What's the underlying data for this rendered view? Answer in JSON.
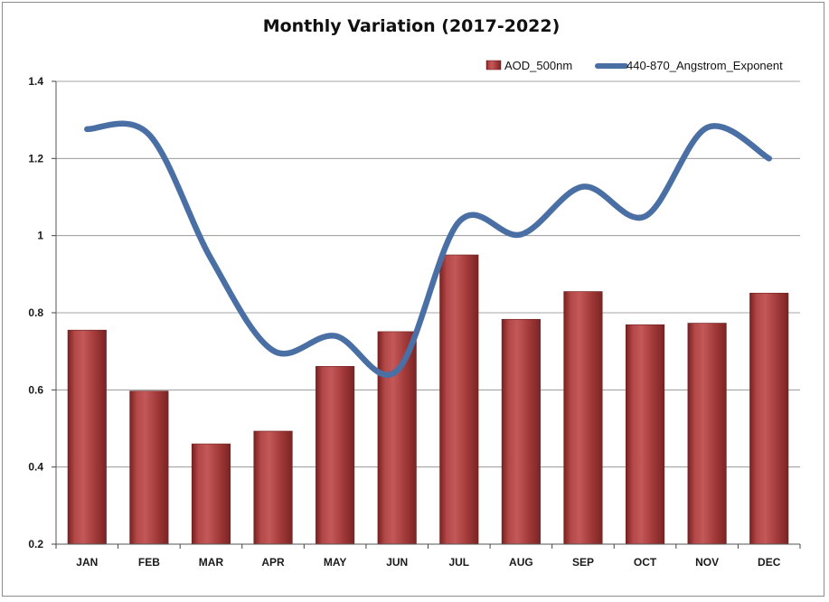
{
  "chart_data": {
    "type": "bar",
    "title": "Monthly Variation  (2017-2022)",
    "xlabel": "",
    "ylabel": "",
    "categories": [
      "JAN",
      "FEB",
      "MAR",
      "APR",
      "MAY",
      "JUN",
      "JUL",
      "AUG",
      "SEP",
      "OCT",
      "NOV",
      "DEC"
    ],
    "ylim": [
      0.2,
      1.4
    ],
    "yticks": [
      "0.2",
      "0.4",
      "0.6",
      "0.8",
      "1",
      "1.2",
      "1.4"
    ],
    "grid": true,
    "legend_position": "top-right",
    "series": [
      {
        "name": "AOD_500nm",
        "type": "bar",
        "color": "#a33a3a",
        "values": [
          0.755,
          0.597,
          0.46,
          0.493,
          0.661,
          0.751,
          0.95,
          0.783,
          0.855,
          0.769,
          0.773,
          0.851
        ]
      },
      {
        "name": "440-870_Angstrom_Exponent",
        "type": "line",
        "color": "#4a6fa5",
        "values": [
          1.276,
          1.262,
          0.94,
          0.702,
          0.74,
          0.65,
          1.036,
          1.003,
          1.127,
          1.05,
          1.28,
          1.2
        ]
      }
    ]
  }
}
